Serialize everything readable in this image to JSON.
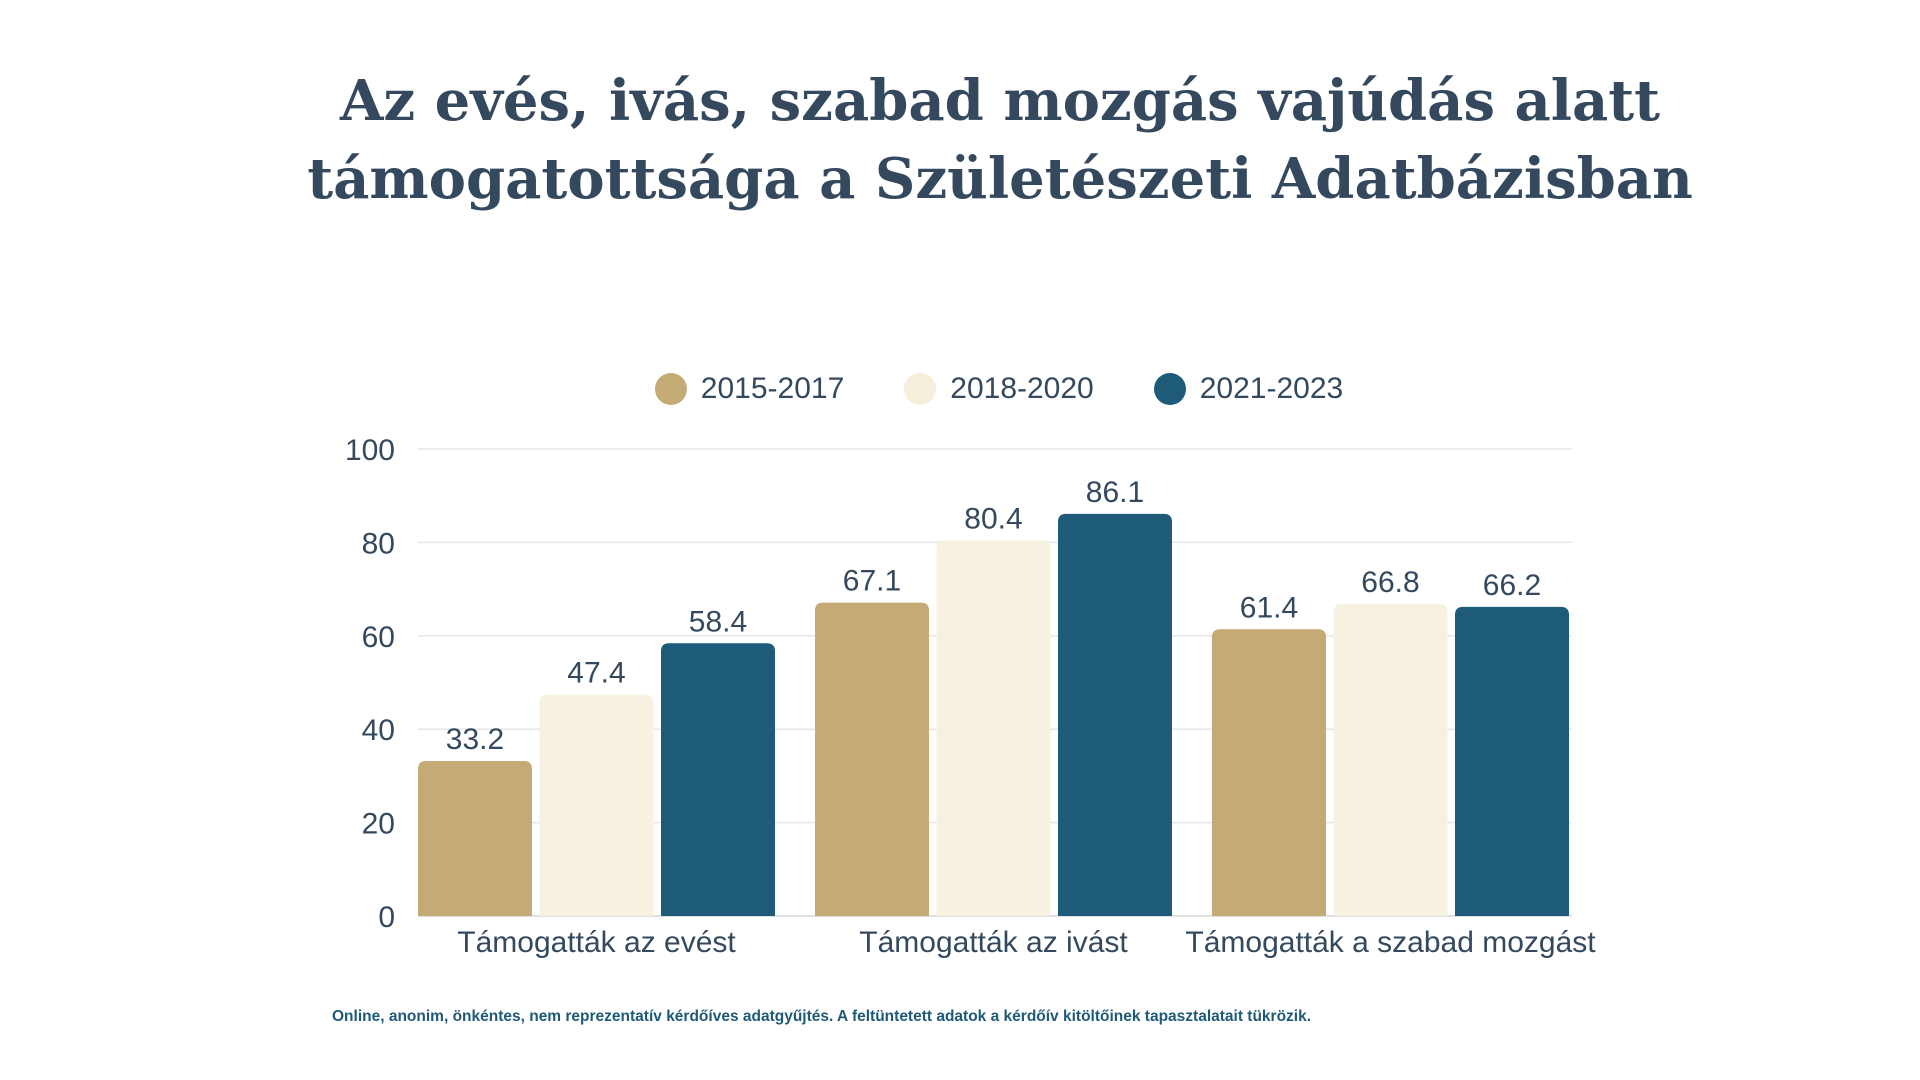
{
  "title_lines": [
    "Az evés, ivás, szabad mozgás vajúdás alatt",
    "támogatottsága a Születészeti Adatbázisban"
  ],
  "footnote": "Online, anonim, önkéntes, nem reprezentatív kérdőíves adatgyűjtés. A feltüntetett adatok a kérdőív kitöltőinek tapasztalatait tükrözik.",
  "chart_data": {
    "type": "bar",
    "categories": [
      "Támogatták az evést",
      "Támogatták az ivást",
      "Támogatták a szabad mozgást"
    ],
    "series": [
      {
        "name": "2015-2017",
        "color": "#c4aa74",
        "values": [
          33.2,
          67.1,
          61.4
        ]
      },
      {
        "name": "2018-2020",
        "color": "#f7f1e2",
        "values": [
          47.4,
          80.4,
          66.8
        ]
      },
      {
        "name": "2021-2023",
        "color": "#1d5b79",
        "values": [
          58.4,
          86.1,
          66.2
        ]
      }
    ],
    "ylim": [
      0,
      100
    ],
    "yticks": [
      0,
      20,
      40,
      60,
      80,
      100
    ],
    "grid": true,
    "legend": "top-center"
  }
}
